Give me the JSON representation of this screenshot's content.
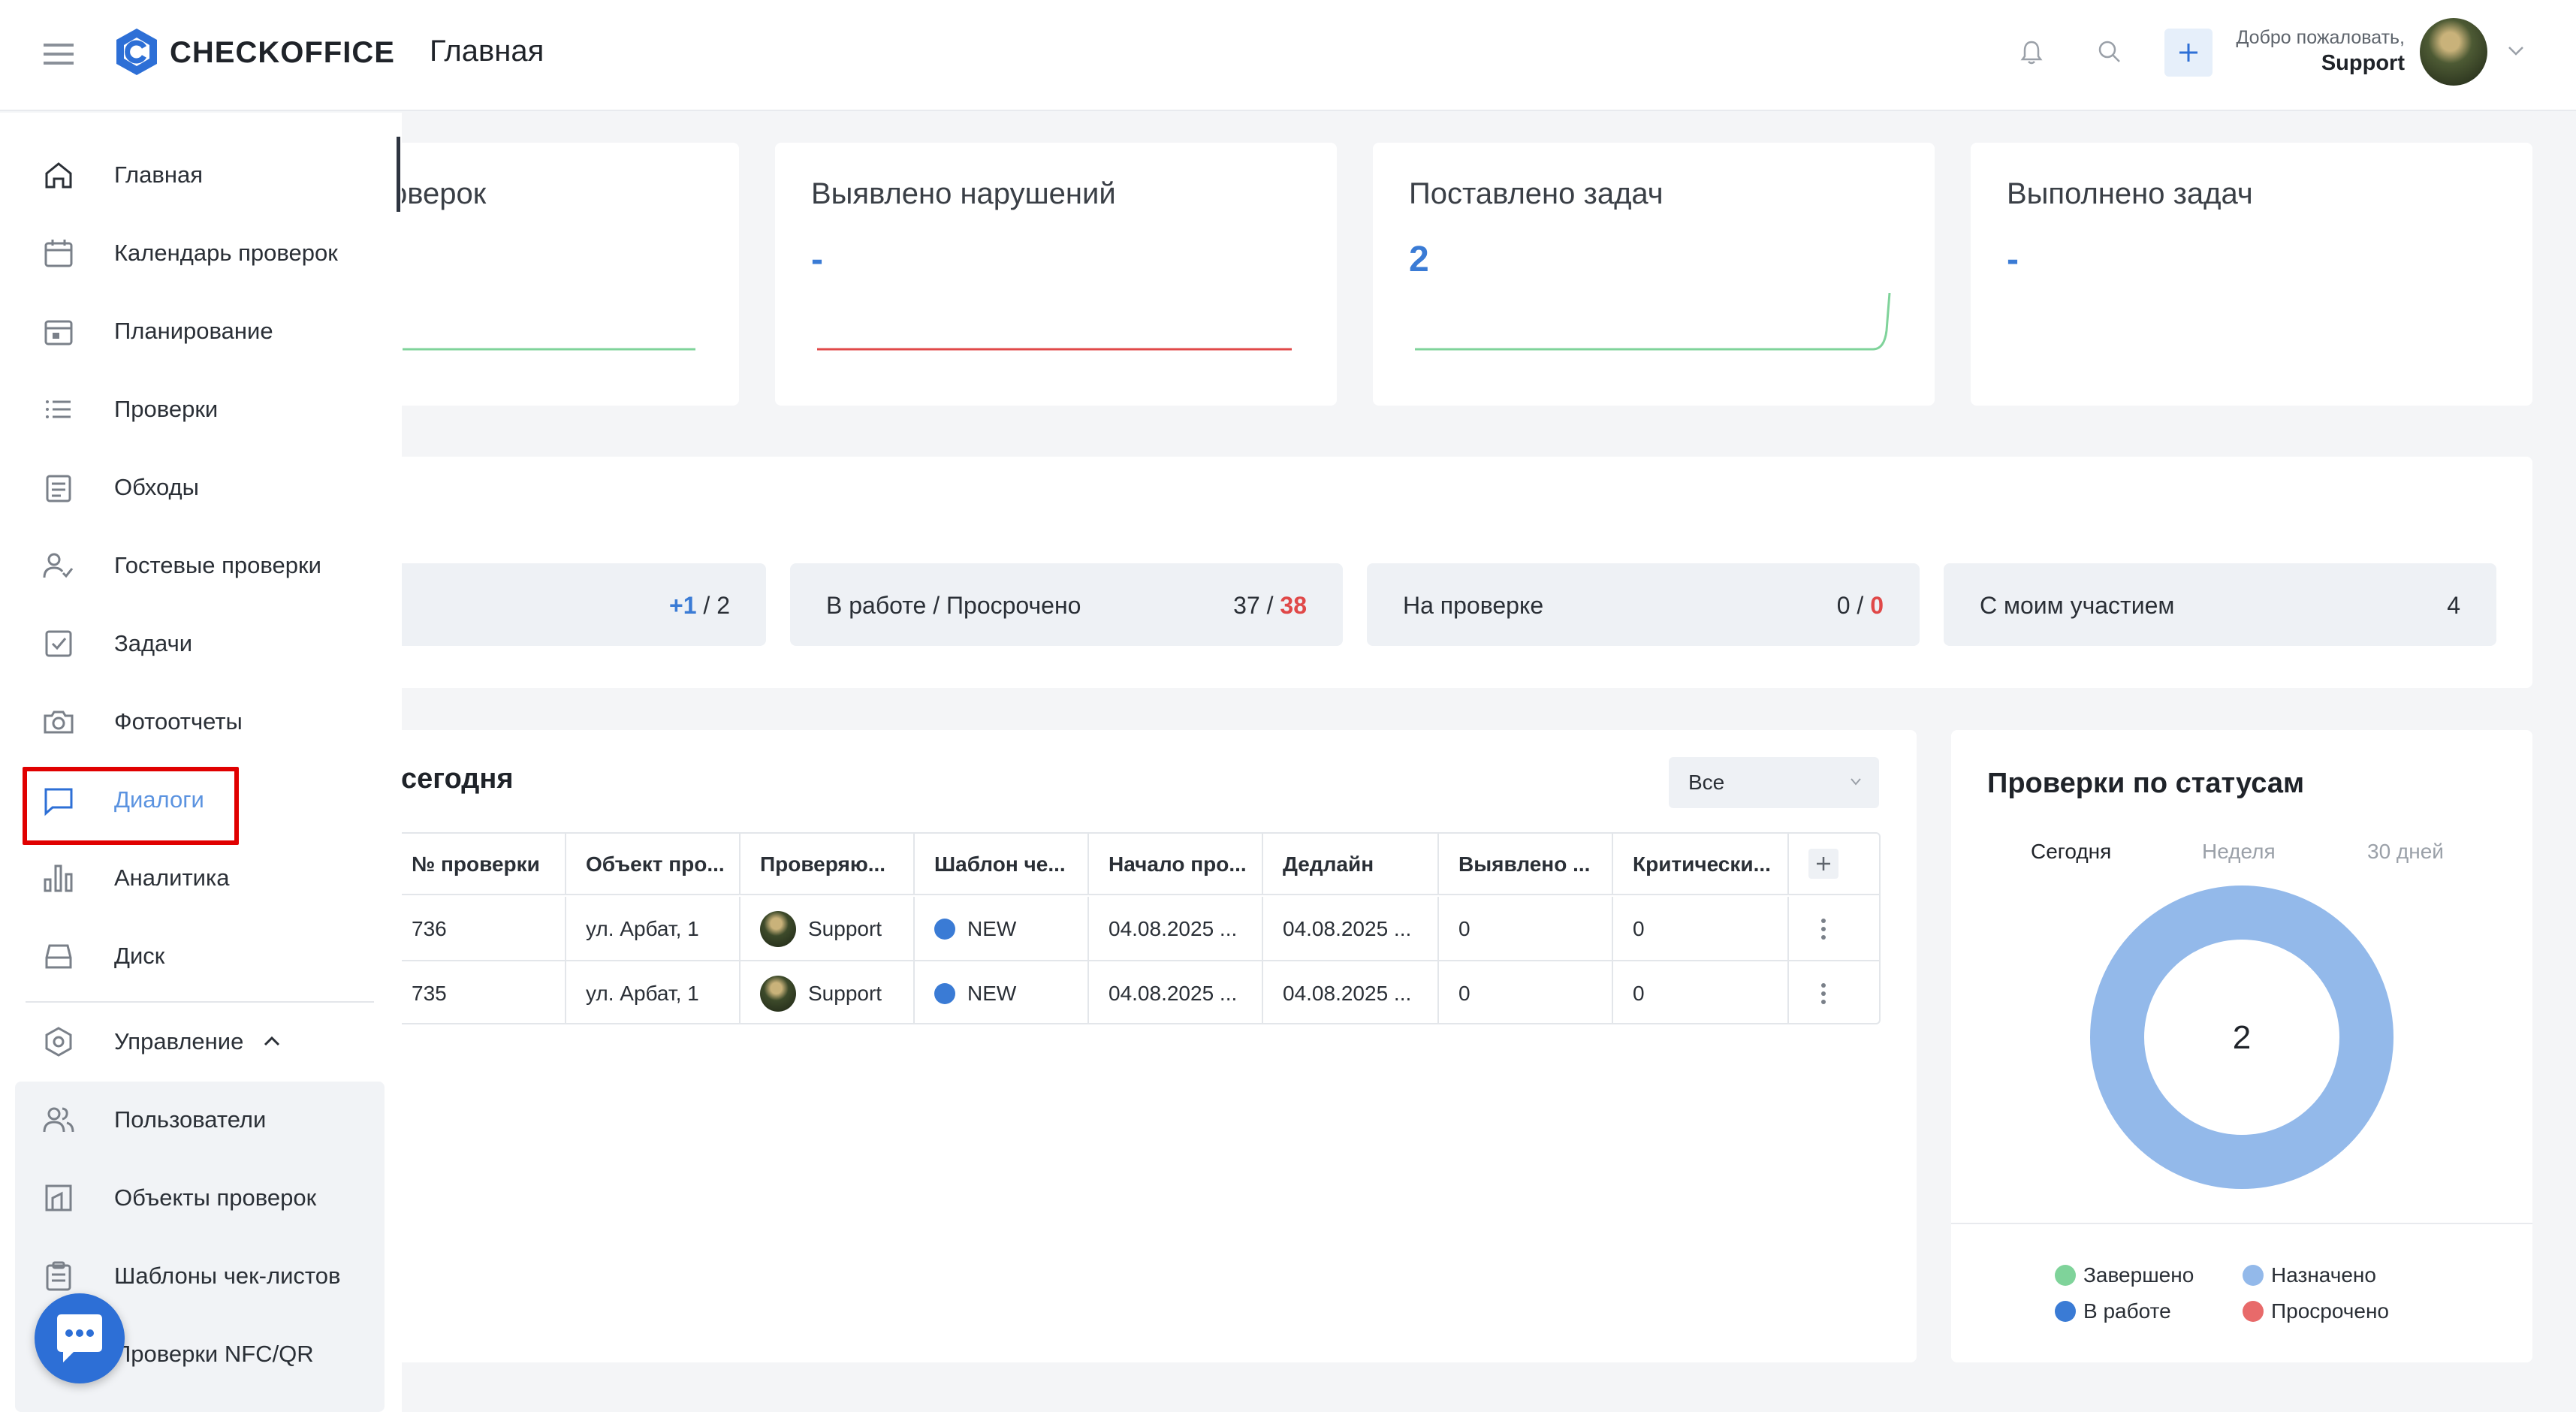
{
  "header": {
    "logo_text": "CHECKOFFICE",
    "page_title": "Главная",
    "welcome": "Добро пожаловать,",
    "user_name": "Support"
  },
  "sidebar": {
    "items": [
      {
        "label": "Главная",
        "icon": "home-icon"
      },
      {
        "label": "Календарь проверок",
        "icon": "calendar-icon"
      },
      {
        "label": "Планирование",
        "icon": "planning-icon"
      },
      {
        "label": "Проверки",
        "icon": "list-icon"
      },
      {
        "label": "Обходы",
        "icon": "rounds-icon"
      },
      {
        "label": "Гостевые проверки",
        "icon": "guest-icon"
      },
      {
        "label": "Задачи",
        "icon": "task-icon"
      },
      {
        "label": "Фотоотчеты",
        "icon": "camera-icon"
      },
      {
        "label": "Диалоги",
        "icon": "dialog-icon"
      },
      {
        "label": "Аналитика",
        "icon": "analytics-icon"
      },
      {
        "label": "Диск",
        "icon": "disk-icon"
      }
    ],
    "management": {
      "label": "Управление",
      "items": [
        {
          "label": "Пользователи",
          "icon": "users-icon"
        },
        {
          "label": "Объекты проверок",
          "icon": "objects-icon"
        },
        {
          "label": "Шаблоны чек-листов",
          "icon": "checklist-icon"
        },
        {
          "label": "Проверки NFC/QR",
          "icon": "nfc-icon"
        }
      ]
    },
    "highlight_color": "#e00000"
  },
  "kpis": [
    {
      "title": "оверок",
      "value": ""
    },
    {
      "title": "Выявлено нарушений",
      "value": "-"
    },
    {
      "title": "Поставлено задач",
      "value": "2"
    },
    {
      "title": "Выполнено задач",
      "value": "-"
    }
  ],
  "stats": [
    {
      "label": "",
      "value_a": "+1",
      "sep": " / ",
      "value_b": "2"
    },
    {
      "label": "В работе / Просрочено",
      "value_a": "37",
      "sep": " / ",
      "value_b": "38"
    },
    {
      "label": "На проверке",
      "value_a": "0",
      "sep": " / ",
      "value_b": "0"
    },
    {
      "label": "С моим участием",
      "value_a": "4",
      "sep": "",
      "value_b": ""
    }
  ],
  "today_table": {
    "title": "сегодня",
    "filter_value": "Все",
    "columns": [
      "№ проверки",
      "Объект про...",
      "Проверяю...",
      "Шаблон че...",
      "Начало про...",
      "Дедлайн",
      "Выявлено ...",
      "Критически..."
    ],
    "rows": [
      {
        "num": "736",
        "object": "ул. Арбат, 1",
        "inspector": "Support",
        "template": "NEW",
        "start": "04.08.2025 ...",
        "deadline": "04.08.2025 ...",
        "found": "0",
        "critical": "0"
      },
      {
        "num": "735",
        "object": "ул. Арбат, 1",
        "inspector": "Support",
        "template": "NEW",
        "start": "04.08.2025 ...",
        "deadline": "04.08.2025 ...",
        "found": "0",
        "critical": "0"
      }
    ]
  },
  "status_panel": {
    "title": "Проверки по статусам",
    "tabs": [
      "Сегодня",
      "Неделя",
      "30 дней"
    ],
    "legend": [
      {
        "label": "Завершено",
        "color": "#7fd39a"
      },
      {
        "label": "Назначено",
        "color": "#93b9ea"
      },
      {
        "label": "В работе",
        "color": "#3a7bd5"
      },
      {
        "label": "Просрочено",
        "color": "#e86a6a"
      }
    ]
  },
  "chart_data": {
    "type": "pie",
    "center_label": "2",
    "segments": [
      {
        "name": "Назначено",
        "value": 2,
        "color": "#93b9ea"
      }
    ]
  }
}
